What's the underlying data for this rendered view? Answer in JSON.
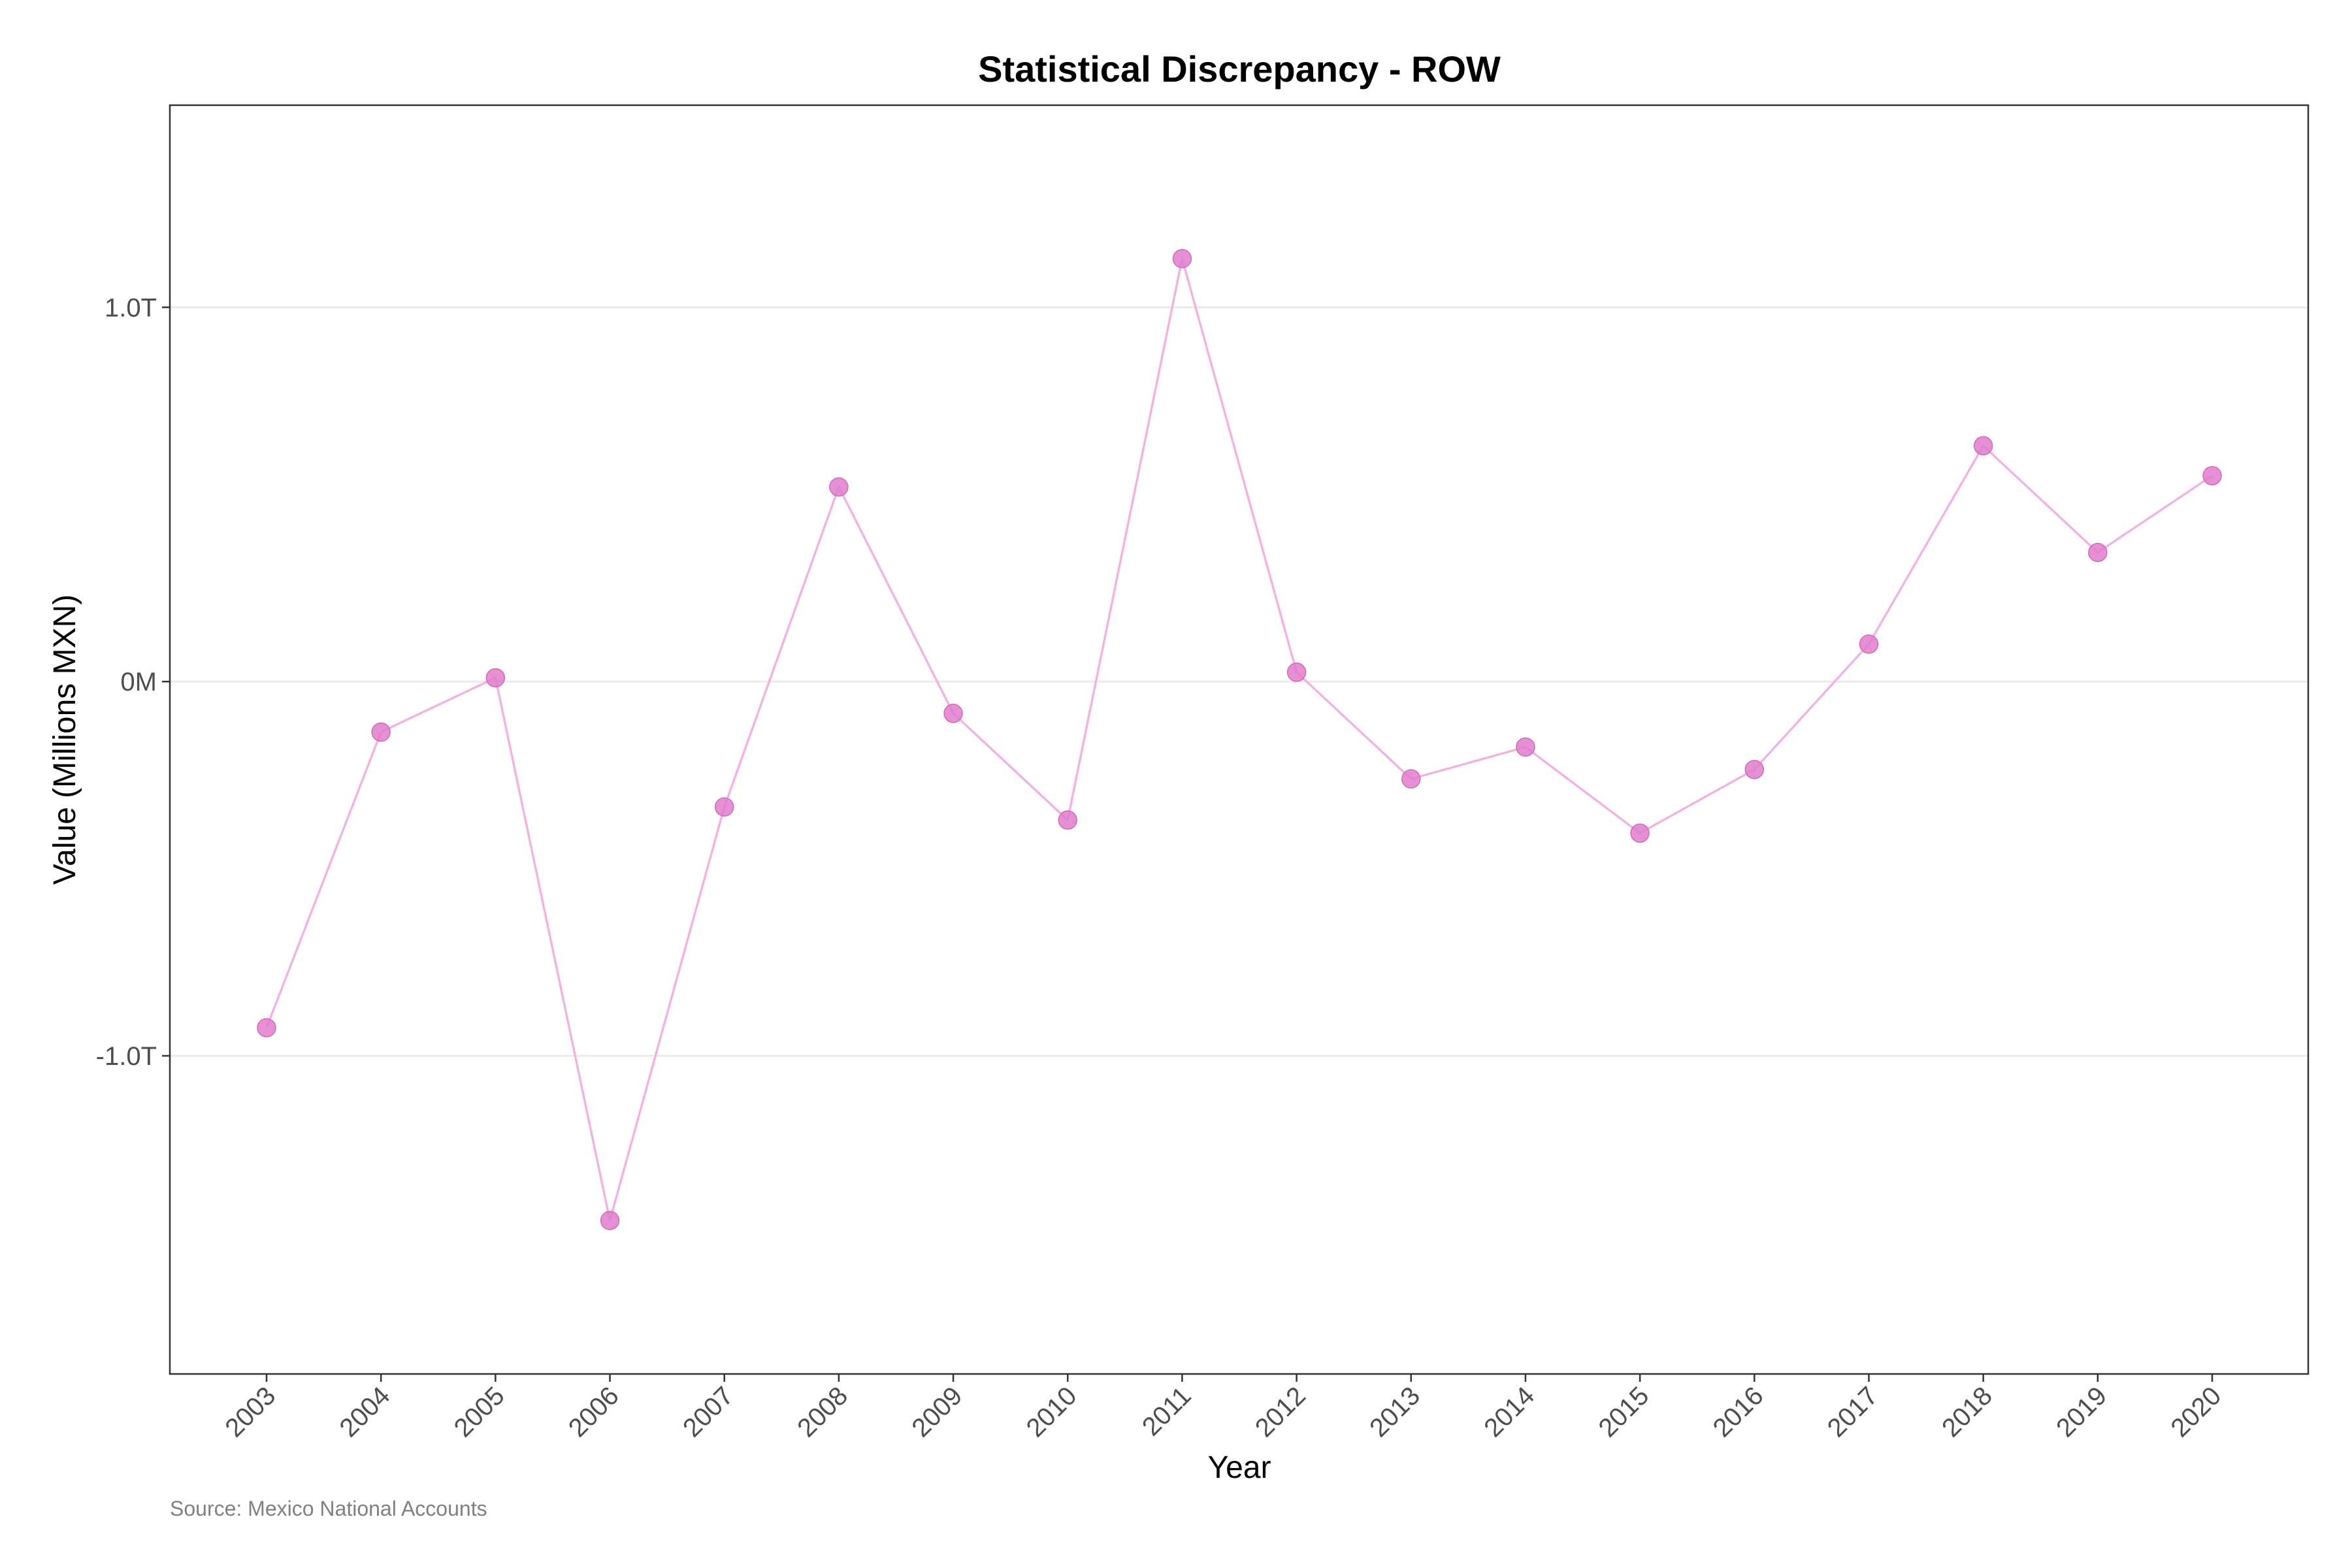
{
  "chart_data": {
    "type": "line",
    "title": "Statistical Discrepancy - ROW",
    "xlabel": "Year",
    "ylabel": "Value (Millions MXN)",
    "caption": "Source: Mexico National Accounts",
    "x": [
      "2003",
      "2004",
      "2005",
      "2006",
      "2007",
      "2008",
      "2009",
      "2010",
      "2011",
      "2012",
      "2013",
      "2014",
      "2015",
      "2016",
      "2017",
      "2018",
      "2019",
      "2020"
    ],
    "series": [
      {
        "values": [
          -925000,
          -135000,
          10000,
          -1440000,
          -335000,
          520000,
          -85000,
          -370000,
          1130000,
          25000,
          -260000,
          -175000,
          -405000,
          -235000,
          100000,
          630000,
          345000,
          550000
        ]
      }
    ],
    "ylim": [
      -1850000,
      1540000
    ],
    "yticks": [
      {
        "value": 1000000,
        "label": "1.0T"
      },
      {
        "value": 0,
        "label": "0M"
      },
      {
        "value": -1000000,
        "label": "-1.0T"
      }
    ],
    "grid": "horizontal-major",
    "colors": {
      "line": "#f0b3e3",
      "point": "#e07bcc",
      "grid": "#ebebeb",
      "border": "#333333"
    }
  }
}
